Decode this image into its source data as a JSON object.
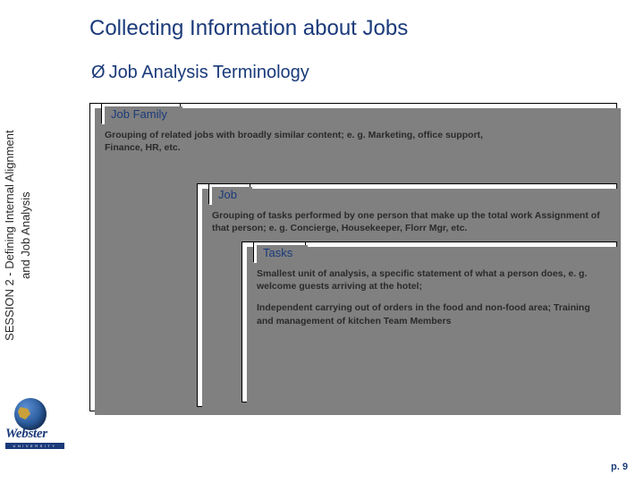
{
  "title": "Collecting Information about Jobs",
  "subtitle_marker": "Ø",
  "subtitle": "Job Analysis Terminology",
  "sidebar_label_line1": "SESSION 2 - Defining Internal Alignment",
  "sidebar_label_line2": "and Job Analysis",
  "logo": {
    "word": "Webster",
    "bar": "UNIVERSITY"
  },
  "page_label": "p. ",
  "page_number": "9",
  "panels": {
    "job_family": {
      "tab": "Job Family",
      "body": "Grouping of related jobs with broadly similar content; e. g. Marketing, office support, Finance, HR, etc."
    },
    "job": {
      "tab": "Job",
      "body": "Grouping of tasks performed by one person that make up the total work Assignment of that person; e. g. Concierge, Housekeeper, Florr Mgr, etc."
    },
    "tasks": {
      "tab": "Tasks",
      "body1": "Smallest unit of  analysis, a specific statement of what a person does, e. g. welcome guests arriving at the hotel;",
      "body2": "Independent carrying out of orders in the food and non-food area; Training and management of kitchen Team Members"
    }
  },
  "colors": {
    "heading": "#1a3a7a",
    "text": "#2a2a2a",
    "panel_bg": "#ffffff",
    "panel_border": "#000000",
    "panel_shadow": "#808080"
  }
}
